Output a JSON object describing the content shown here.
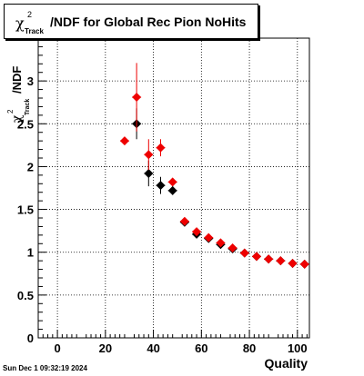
{
  "chart_data": {
    "type": "scatter",
    "title": "χ²Track/NDF for Global Rec Pion NoHits",
    "title_parts": {
      "chi": "χ",
      "sup": "2",
      "sub": "Track",
      "rest": "/NDF for Global Rec Pion NoHits"
    },
    "xlabel": "Quality",
    "ylabel_parts": {
      "chi": "χ",
      "sup": "2",
      "sub": "Track",
      "rest": "/NDF"
    },
    "xlim": [
      -8,
      105
    ],
    "ylim": [
      0,
      3.5
    ],
    "x_ticks": [
      0,
      20,
      40,
      60,
      80,
      100
    ],
    "y_ticks": [
      0,
      0.5,
      1,
      1.5,
      2,
      2.5,
      3
    ],
    "y_tick_labels": [
      "0",
      "0.5",
      "1",
      "1.5",
      "2",
      "2.5",
      "3"
    ],
    "grid": true,
    "series": [
      {
        "color": "#000000",
        "points": [
          {
            "x": 33,
            "y": 2.5,
            "yerr": 0.18
          },
          {
            "x": 38,
            "y": 1.92,
            "yerr": 0.15
          },
          {
            "x": 43,
            "y": 1.78,
            "yerr": 0.1
          },
          {
            "x": 48,
            "y": 1.72,
            "yerr": 0.05
          },
          {
            "x": 53,
            "y": 1.35,
            "yerr": 0.03
          },
          {
            "x": 58,
            "y": 1.21,
            "yerr": 0.03
          },
          {
            "x": 63,
            "y": 1.16,
            "yerr": 0.02
          },
          {
            "x": 68,
            "y": 1.09,
            "yerr": 0.02
          },
          {
            "x": 73,
            "y": 1.04,
            "yerr": 0.02
          },
          {
            "x": 78,
            "y": 0.99,
            "yerr": 0.01
          },
          {
            "x": 83,
            "y": 0.95,
            "yerr": 0.01
          },
          {
            "x": 88,
            "y": 0.92,
            "yerr": 0.01
          },
          {
            "x": 93,
            "y": 0.9,
            "yerr": 0.01
          },
          {
            "x": 98,
            "y": 0.87,
            "yerr": 0.01
          },
          {
            "x": 103,
            "y": 0.86,
            "yerr": 0.01
          }
        ]
      },
      {
        "color": "#ee0000",
        "points": [
          {
            "x": 28,
            "y": 2.3,
            "yerr": 0.02
          },
          {
            "x": 33,
            "y": 2.81,
            "yerr": 0.4
          },
          {
            "x": 38,
            "y": 2.14,
            "yerr": 0.18
          },
          {
            "x": 43,
            "y": 2.22,
            "yerr": 0.1
          },
          {
            "x": 48,
            "y": 1.82,
            "yerr": 0.04
          },
          {
            "x": 53,
            "y": 1.36,
            "yerr": 0.02
          },
          {
            "x": 58,
            "y": 1.24,
            "yerr": 0.02
          },
          {
            "x": 63,
            "y": 1.17,
            "yerr": 0.02
          },
          {
            "x": 68,
            "y": 1.11,
            "yerr": 0.02
          },
          {
            "x": 73,
            "y": 1.05,
            "yerr": 0.02
          },
          {
            "x": 78,
            "y": 0.99,
            "yerr": 0.01
          },
          {
            "x": 83,
            "y": 0.95,
            "yerr": 0.01
          },
          {
            "x": 88,
            "y": 0.92,
            "yerr": 0.01
          },
          {
            "x": 93,
            "y": 0.9,
            "yerr": 0.01
          },
          {
            "x": 98,
            "y": 0.87,
            "yerr": 0.01
          },
          {
            "x": 103,
            "y": 0.86,
            "yerr": 0.01
          }
        ]
      }
    ]
  },
  "footer": {
    "timestamp": "Sun Dec  1 09:32:19 2024"
  }
}
